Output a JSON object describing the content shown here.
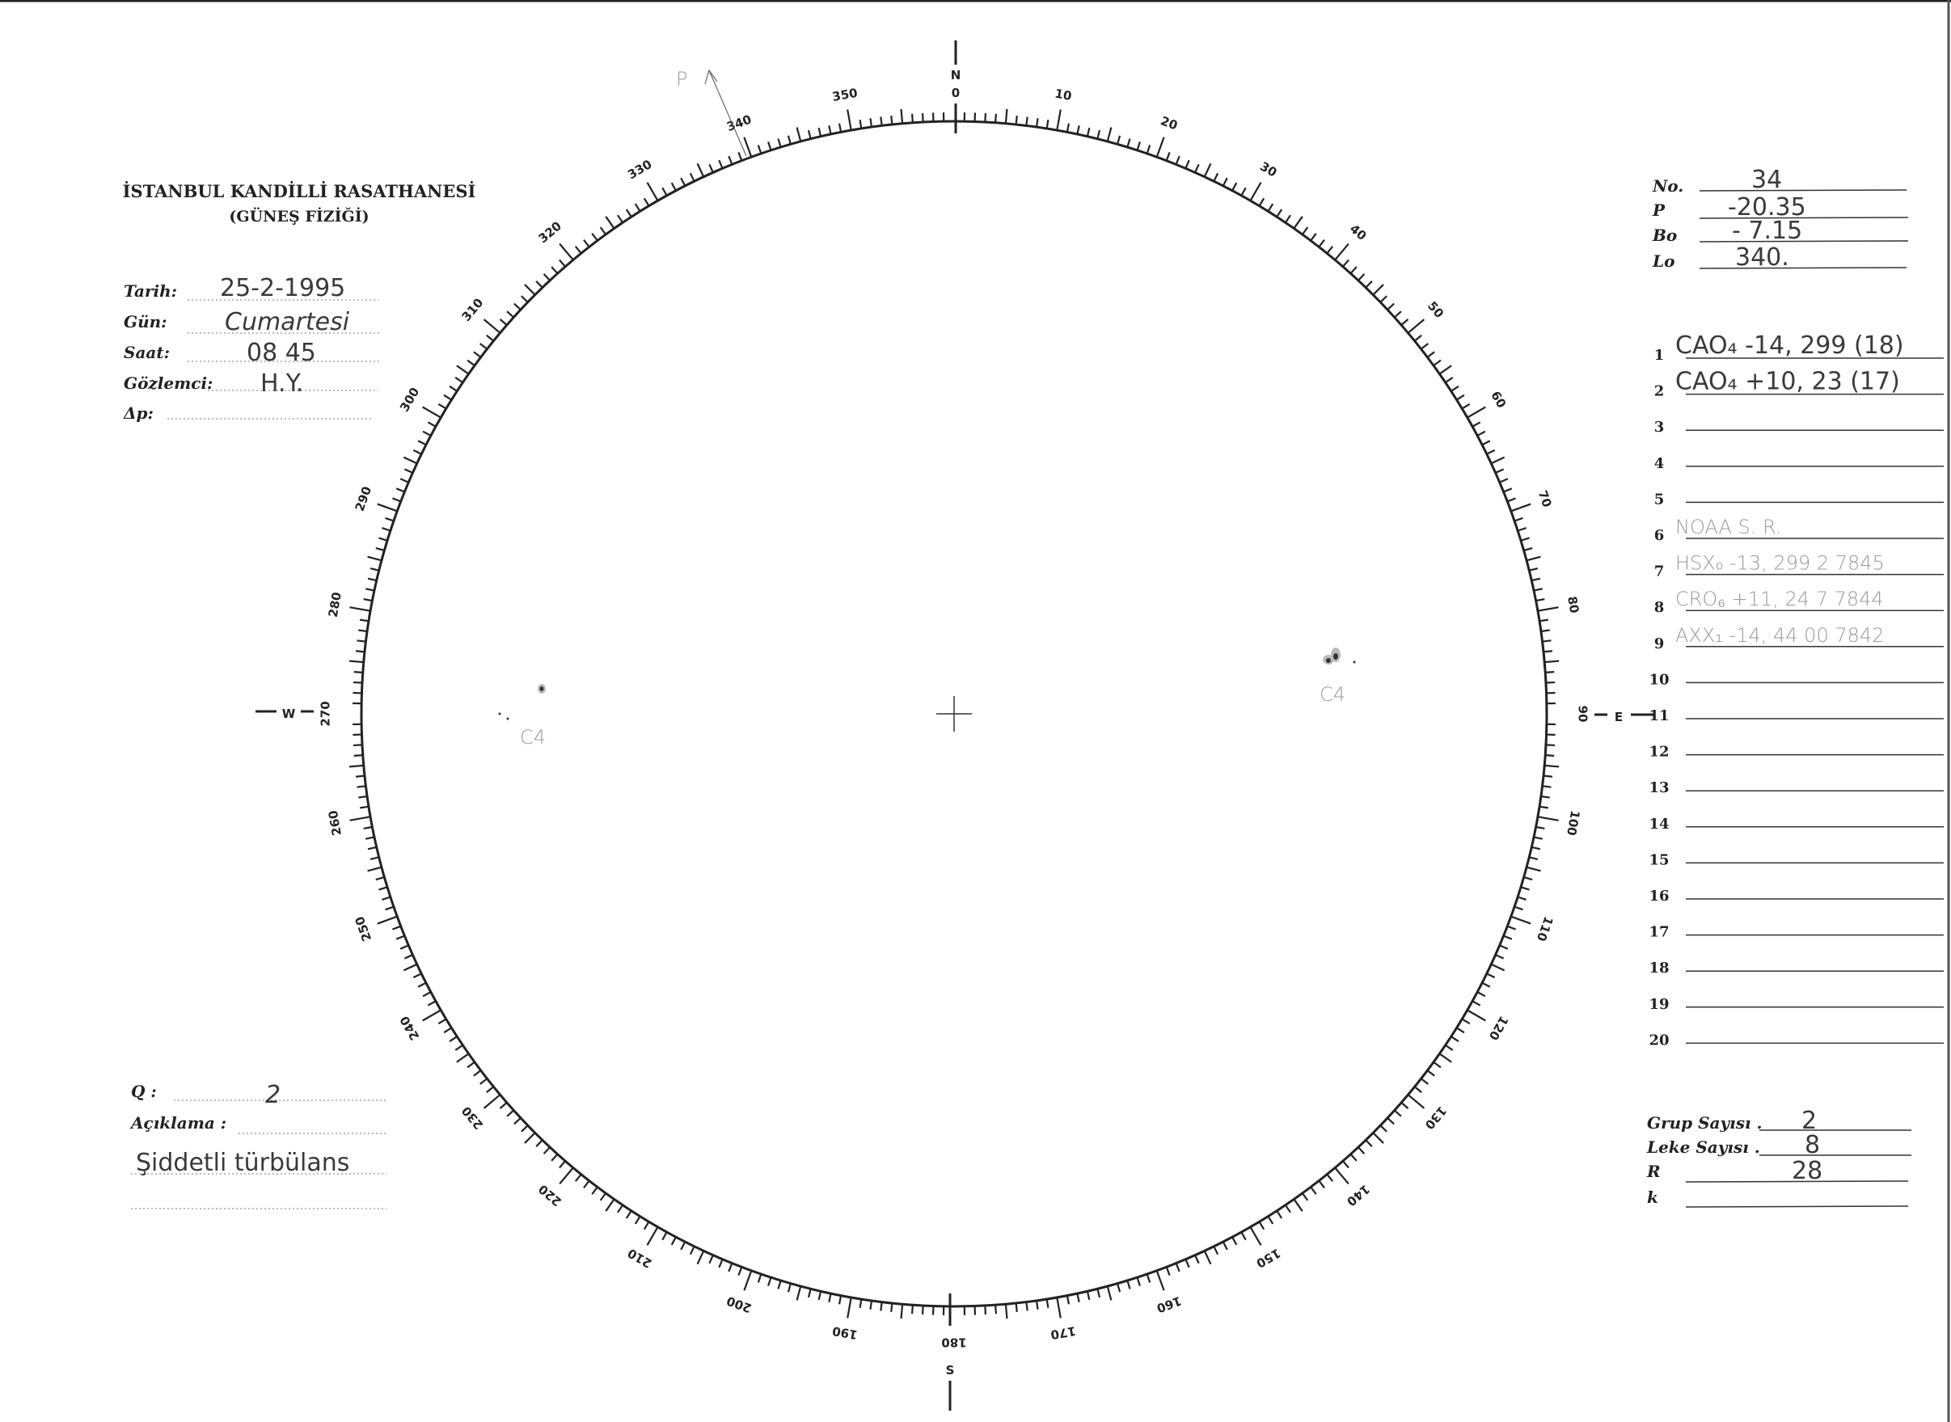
{
  "header": {
    "title": "İSTANBUL KANDİLLİ RASATHANESİ",
    "subtitle": "(GÜNEŞ FİZİĞİ)"
  },
  "observation": {
    "tarih_label": "Tarih:",
    "tarih_value": "25-2-1995",
    "gun_label": "Gün:",
    "gun_value": "Cumartesi",
    "saat_label": "Saat:",
    "saat_value": "08 45",
    "gozlemci_label": "Gözlemci:",
    "gozlemci_value": "H.Y.",
    "dp_label": "Δp:",
    "dp_value": ""
  },
  "ephemeris": {
    "no_label": "No.",
    "no_value": "34",
    "p_label": "P",
    "p_value": "-20.35",
    "bo_label": "Bo",
    "bo_value": "- 7.15",
    "lo_label": "Lo",
    "lo_value": "340."
  },
  "groups": [
    {
      "n": "1",
      "text": "CAO₄ -14, 299  (18)"
    },
    {
      "n": "2",
      "text": "CAO₄ +10, 23  (17)"
    },
    {
      "n": "3",
      "text": ""
    },
    {
      "n": "4",
      "text": ""
    },
    {
      "n": "5",
      "text": ""
    },
    {
      "n": "6",
      "text": "NOAA  S. R."
    },
    {
      "n": "7",
      "text": "HSX₀ -13, 299 2 7845"
    },
    {
      "n": "8",
      "text": "CRO₆ +11, 24 7 7844"
    },
    {
      "n": "9",
      "text": "AXX₁ -14, 44 00 7842"
    },
    {
      "n": "10",
      "text": ""
    },
    {
      "n": "11",
      "text": ""
    },
    {
      "n": "12",
      "text": ""
    },
    {
      "n": "13",
      "text": ""
    },
    {
      "n": "14",
      "text": ""
    },
    {
      "n": "15",
      "text": ""
    },
    {
      "n": "16",
      "text": ""
    },
    {
      "n": "17",
      "text": ""
    },
    {
      "n": "18",
      "text": ""
    },
    {
      "n": "19",
      "text": ""
    },
    {
      "n": "20",
      "text": ""
    }
  ],
  "quality": {
    "q_label": "Q :",
    "q_value": "2",
    "aciklama_label": "Açıklama :",
    "aciklama_value": "Şiddetli türbülans"
  },
  "counts": {
    "grup_label": "Grup Sayısı .",
    "grup_value": "2",
    "leke_label": "Leke Sayısı .",
    "leke_value": "8",
    "r_label": "R",
    "r_value": "28",
    "k_label": "k",
    "k_value": ""
  },
  "disk": {
    "north": [
      "N",
      "0"
    ],
    "east": "E",
    "west": "W",
    "south": "S",
    "scale_labels": [
      "0",
      "10",
      "20",
      "30",
      "40",
      "50",
      "60",
      "70",
      "80",
      "90",
      "100",
      "110",
      "120",
      "130",
      "140",
      "150",
      "160",
      "170",
      "180",
      "190",
      "200",
      "210",
      "220",
      "230",
      "240",
      "250",
      "260",
      "270",
      "280",
      "290",
      "300",
      "310",
      "320",
      "330",
      "340",
      "350"
    ],
    "annotations": {
      "p_mark": "P",
      "group_left": "C4",
      "group_right": "C4"
    }
  }
}
